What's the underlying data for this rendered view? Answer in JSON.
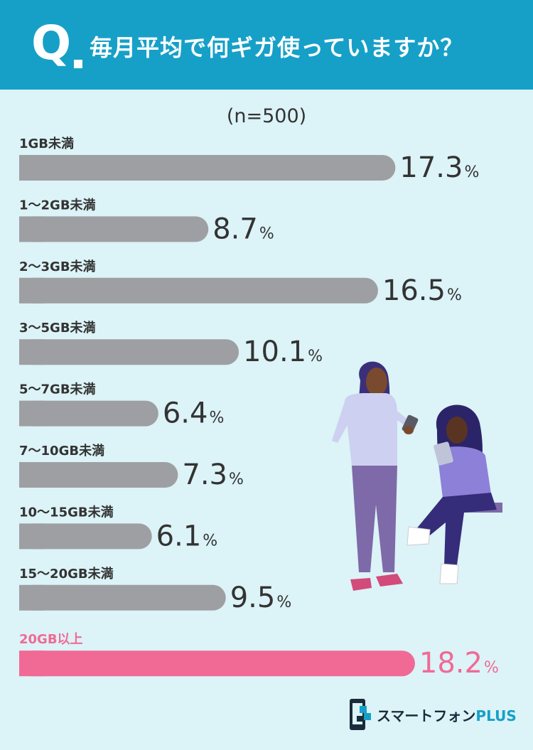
{
  "header": {
    "q_mark": "Q",
    "title": "毎月平均で何ギガ使っていますか？"
  },
  "sample_size": "(n=500)",
  "chart_data": {
    "type": "bar",
    "orientation": "horizontal",
    "title": "毎月平均で何ギガ使っていますか？",
    "categories": [
      "1GB未満",
      "1〜2GB未満",
      "2〜3GB未満",
      "3〜5GB未満",
      "5〜7GB未満",
      "7〜10GB未満",
      "10〜15GB未満",
      "15〜20GB未満",
      "20GB以上"
    ],
    "values": [
      17.3,
      8.7,
      16.5,
      10.1,
      6.4,
      7.3,
      6.1,
      9.5,
      18.2
    ],
    "unit": "%",
    "highlight_index": 8,
    "grid": false,
    "legend": "none"
  },
  "colors": {
    "header_bg": "#16a0c8",
    "page_bg": "#dcf3f7",
    "bar": "#9e9fa3",
    "highlight": "#f06a95",
    "text": "#333333"
  },
  "logo": {
    "name": "スマートフォン",
    "suffix": "PLUS"
  }
}
